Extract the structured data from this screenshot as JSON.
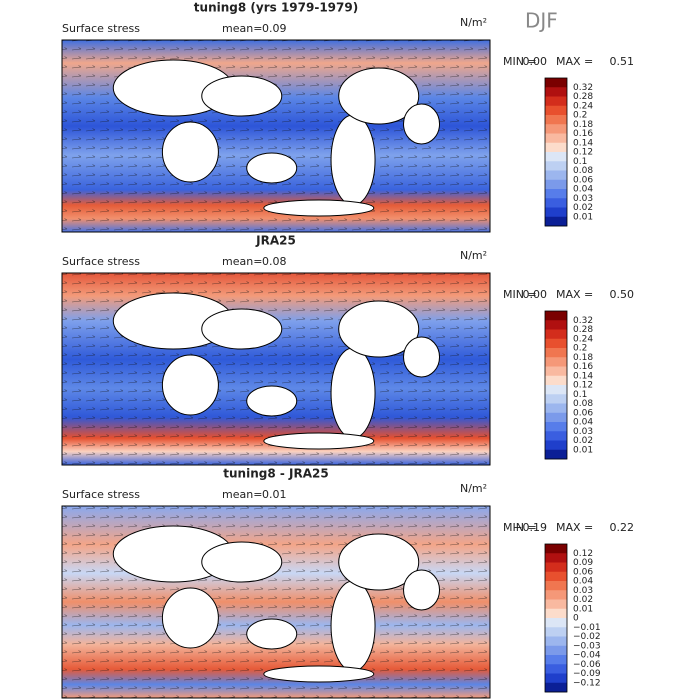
{
  "season": "DJF",
  "panels": [
    {
      "title": "tuning8 (yrs 1979-1979)",
      "subtitle": "Surface stress",
      "mean_label": "mean=",
      "mean": "0.09",
      "units": "N/m²",
      "min_label": "MIN =",
      "min": "0.00",
      "max_label": "MAX =",
      "max": "0.51",
      "levels": [
        "0.32",
        "0.28",
        "0.24",
        "0.2",
        "0.18",
        "0.16",
        "0.14",
        "0.12",
        "0.1",
        "0.08",
        "0.06",
        "0.04",
        "0.03",
        "0.02",
        "0.01"
      ]
    },
    {
      "title": "JRA25",
      "subtitle": "Surface stress",
      "mean_label": "mean=",
      "mean": "0.08",
      "units": "N/m²",
      "min_label": "MIN =",
      "min": "0.00",
      "max_label": "MAX =",
      "max": "0.50",
      "levels": [
        "0.32",
        "0.28",
        "0.24",
        "0.2",
        "0.18",
        "0.16",
        "0.14",
        "0.12",
        "0.1",
        "0.08",
        "0.06",
        "0.04",
        "0.03",
        "0.02",
        "0.01"
      ]
    },
    {
      "title": "tuning8 - JRA25",
      "subtitle": "Surface stress",
      "mean_label": "mean=",
      "mean": "0.01",
      "units": "N/m²",
      "min_label": "MIN =",
      "min": "−0.19",
      "max_label": "MAX =",
      "max": "0.22",
      "levels": [
        "0.12",
        "0.09",
        "0.06",
        "0.04",
        "0.03",
        "0.02",
        "0.01",
        "0",
        "−0.01",
        "−0.02",
        "−0.03",
        "−0.04",
        "−0.06",
        "−0.09",
        "−0.12"
      ]
    }
  ]
}
